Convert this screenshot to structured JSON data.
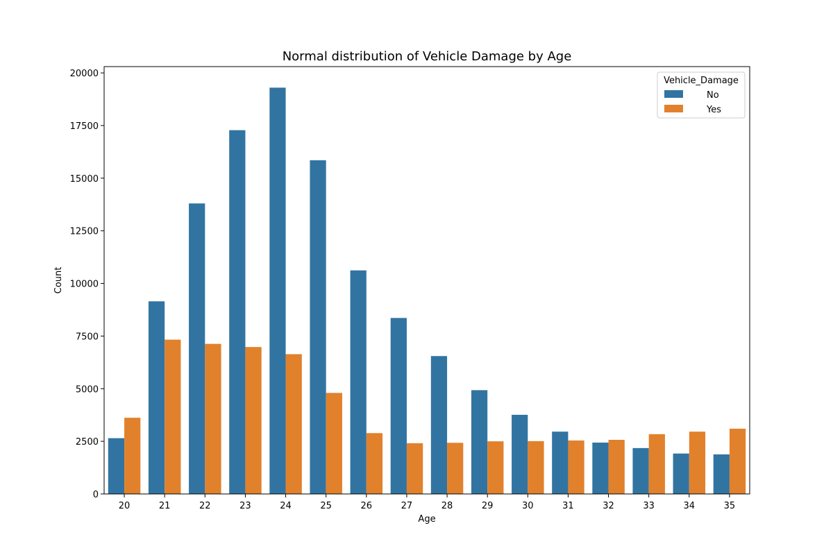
{
  "chart_data": {
    "type": "bar",
    "title": "Normal distribution of Vehicle Damage by Age",
    "xlabel": "Age",
    "ylabel": "Count",
    "categories": [
      "20",
      "21",
      "22",
      "23",
      "24",
      "25",
      "26",
      "27",
      "28",
      "29",
      "30",
      "31",
      "32",
      "33",
      "34",
      "35"
    ],
    "series": [
      {
        "name": "No",
        "color": "#3274a1",
        "values": [
          2650,
          9150,
          13800,
          17280,
          19300,
          15850,
          10620,
          8360,
          6550,
          4930,
          3760,
          2960,
          2440,
          2180,
          1920,
          1880
        ]
      },
      {
        "name": "Yes",
        "color": "#e1812c",
        "values": [
          3620,
          7330,
          7130,
          6980,
          6640,
          4800,
          2890,
          2410,
          2430,
          2500,
          2510,
          2540,
          2570,
          2840,
          2960,
          3100
        ]
      }
    ],
    "yticks": [
      0,
      2500,
      5000,
      7500,
      10000,
      12500,
      15000,
      17500,
      20000
    ],
    "ytick_labels": [
      "0",
      "2500",
      "5000",
      "7500",
      "10000",
      "12500",
      "15000",
      "17500",
      "20000"
    ],
    "ylim": [
      0,
      20300
    ],
    "grid": false,
    "legend": {
      "title": "Vehicle_Damage",
      "placement": "top-right",
      "entries": [
        "No",
        "Yes"
      ]
    }
  }
}
